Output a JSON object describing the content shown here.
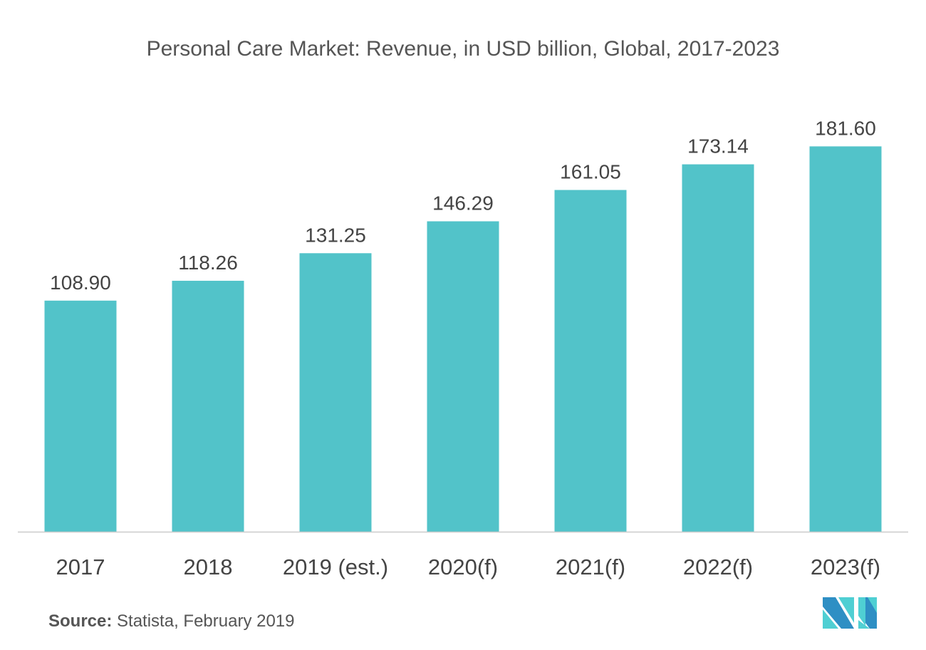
{
  "chart_data": {
    "type": "bar",
    "title": "Personal Care Market: Revenue, in USD billion, Global, 2017-2023",
    "categories": [
      "2017",
      "2018",
      "2019 (est.)",
      "2020(f)",
      "2021(f)",
      "2022(f)",
      "2023(f)"
    ],
    "values": [
      108.9,
      118.26,
      131.25,
      146.29,
      161.05,
      173.14,
      181.6
    ],
    "data_labels": [
      "108.90",
      "118.26",
      "131.25",
      "146.29",
      "161.05",
      "173.14",
      "181.60"
    ],
    "xlabel": "",
    "ylabel": "",
    "ylim": [
      0,
      200
    ],
    "grid": false,
    "bar_color": "#52c3c9"
  },
  "source": {
    "label": "Source:",
    "text": " Statista, February 2019"
  },
  "logo": {
    "colors": [
      "#2e8fc4",
      "#4fcfd3"
    ]
  }
}
